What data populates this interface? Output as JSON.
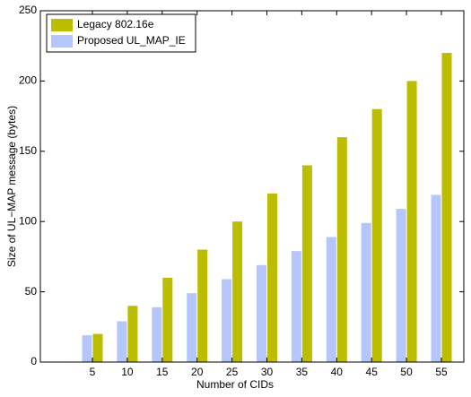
{
  "chart_data": {
    "type": "bar",
    "x_label": "Number of CIDs",
    "y_label": "Size of UL−MAP message (bytes)",
    "categories": [
      "5",
      "10",
      "15",
      "20",
      "25",
      "30",
      "35",
      "40",
      "45",
      "50",
      "55"
    ],
    "series": [
      {
        "name": "Legacy 802.16e",
        "color": "#bcbc00",
        "values": [
          20,
          40,
          60,
          80,
          100,
          120,
          140,
          160,
          180,
          200,
          220
        ]
      },
      {
        "name": "Proposed UL_MAP_IE",
        "color": "#b4c6fa",
        "values": [
          19,
          29,
          39,
          49,
          59,
          69,
          79,
          89,
          99,
          109,
          119
        ]
      }
    ],
    "ylim": [
      0,
      250
    ],
    "yticks": [
      0,
      50,
      100,
      150,
      200,
      250
    ],
    "legend": "top-left"
  }
}
